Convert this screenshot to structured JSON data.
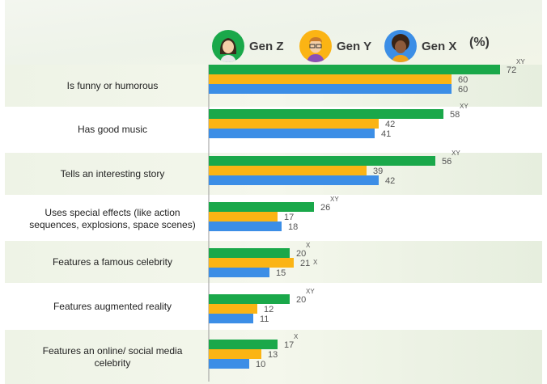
{
  "colors": {
    "gen_z": "#1aa84a",
    "gen_y": "#fbb414",
    "gen_x": "#3c8ee6"
  },
  "legend": [
    {
      "name": "Gen Z",
      "avatar_bg": "#1aa84a",
      "icon": "gen-z-avatar-icon"
    },
    {
      "name": "Gen Y",
      "avatar_bg": "#fbb414",
      "icon": "gen-y-avatar-icon"
    },
    {
      "name": "Gen X",
      "avatar_bg": "#3c8ee6",
      "icon": "gen-x-avatar-icon"
    }
  ],
  "unit": "(%)",
  "chart_data": {
    "type": "bar",
    "orientation": "horizontal",
    "categories": [
      "Is funny or humorous",
      "Has good music",
      "Tells an interesting story",
      "Uses special effects (like action sequences, explosions, space scenes)",
      "Features a famous celebrity",
      "Features augmented reality",
      "Features an online/ social media celebrity"
    ],
    "series": [
      {
        "name": "Gen Z",
        "values": [
          72,
          58,
          56,
          26,
          20,
          20,
          17
        ],
        "significance": [
          "XY",
          "XY",
          "XY",
          "XY",
          "X",
          "XY",
          "X"
        ]
      },
      {
        "name": "Gen Y",
        "values": [
          60,
          42,
          39,
          17,
          21,
          12,
          13
        ],
        "significance": [
          "",
          "",
          "",
          "",
          "X",
          "",
          ""
        ]
      },
      {
        "name": "Gen X",
        "values": [
          60,
          41,
          42,
          18,
          15,
          11,
          10
        ],
        "significance": [
          "",
          "",
          "",
          "",
          "",
          "",
          ""
        ]
      }
    ],
    "xlim": [
      0,
      80
    ],
    "grid": false,
    "legend_position": "top"
  }
}
